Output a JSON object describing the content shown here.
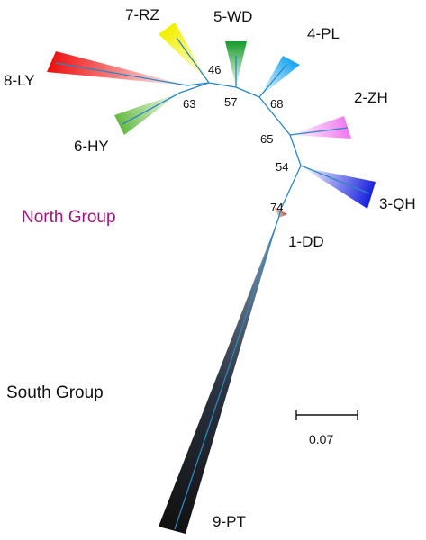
{
  "clades": [
    {
      "id": "7-RZ",
      "label": "7-RZ",
      "color": "#f2f000"
    },
    {
      "id": "5-WD",
      "label": "5-WD",
      "color": "#1a9c2c"
    },
    {
      "id": "4-PL",
      "label": "4-PL",
      "color": "#22aaf0"
    },
    {
      "id": "8-LY",
      "label": "8-LY",
      "color": "#ee1111"
    },
    {
      "id": "2-ZH",
      "label": "2-ZH",
      "color": "#ee77ee"
    },
    {
      "id": "6-HY",
      "label": "6-HY",
      "color": "#66bb44"
    },
    {
      "id": "3-QH",
      "label": "3-QH",
      "color": "#1a22dd"
    },
    {
      "id": "1-DD",
      "label": "1-DD",
      "color": "#b24e3a"
    },
    {
      "id": "9-PT",
      "label": "9-PT",
      "color": "#111111"
    }
  ],
  "support_values": [
    "46",
    "57",
    "68",
    "63",
    "65",
    "54",
    "74"
  ],
  "groups": {
    "north": {
      "label": "North Group",
      "color": "#a0157a"
    },
    "south": {
      "label": "South Group",
      "color": "#111111"
    }
  },
  "scale_bar": {
    "label": "0.07"
  }
}
